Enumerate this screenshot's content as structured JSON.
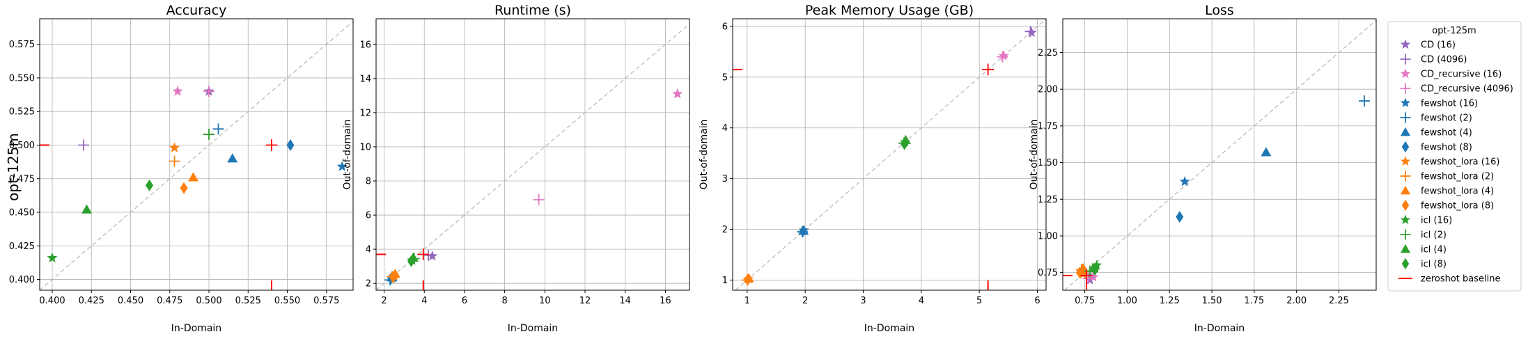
{
  "row_label": "opt-125m",
  "colors": {
    "CD": "#9467bd",
    "CD_recursive": "#e377c2",
    "fewshot": "#1f77b4",
    "fewshot_lora": "#ff7f0e",
    "icl": "#2ca02c",
    "zeroshot": "#ff0000",
    "diag": "#bbbbbb",
    "grid": "#b0b0b0"
  },
  "legend": {
    "title": "opt-125m",
    "placement": "outside-right",
    "entries": [
      {
        "label": "CD (16)",
        "family": "CD",
        "marker": "star"
      },
      {
        "label": "CD (4096)",
        "family": "CD",
        "marker": "plus"
      },
      {
        "label": "CD_recursive (16)",
        "family": "CD_recursive",
        "marker": "star"
      },
      {
        "label": "CD_recursive (4096)",
        "family": "CD_recursive",
        "marker": "plus"
      },
      {
        "label": "fewshot (16)",
        "family": "fewshot",
        "marker": "star"
      },
      {
        "label": "fewshot (2)",
        "family": "fewshot",
        "marker": "plus"
      },
      {
        "label": "fewshot (4)",
        "family": "fewshot",
        "marker": "triangle"
      },
      {
        "label": "fewshot (8)",
        "family": "fewshot",
        "marker": "diamond"
      },
      {
        "label": "fewshot_lora (16)",
        "family": "fewshot_lora",
        "marker": "star"
      },
      {
        "label": "fewshot_lora (2)",
        "family": "fewshot_lora",
        "marker": "plus"
      },
      {
        "label": "fewshot_lora (4)",
        "family": "fewshot_lora",
        "marker": "triangle"
      },
      {
        "label": "fewshot_lora (8)",
        "family": "fewshot_lora",
        "marker": "diamond"
      },
      {
        "label": "icl (16)",
        "family": "icl",
        "marker": "star"
      },
      {
        "label": "icl (2)",
        "family": "icl",
        "marker": "plus"
      },
      {
        "label": "icl (4)",
        "family": "icl",
        "marker": "triangle"
      },
      {
        "label": "icl (8)",
        "family": "icl",
        "marker": "diamond"
      },
      {
        "label": "zeroshot baseline",
        "family": "zeroshot",
        "marker": "line"
      }
    ]
  },
  "chart_data": [
    {
      "type": "scatter",
      "title": "Accuracy",
      "xlabel": "In-Domain",
      "ylabel": "",
      "xlim": [
        0.392,
        0.592
      ],
      "ylim": [
        0.392,
        0.594
      ],
      "xticks": [
        "0.400",
        "0.425",
        "0.450",
        "0.475",
        "0.500",
        "0.525",
        "0.550",
        "0.575"
      ],
      "xtick_values": [
        0.4,
        0.425,
        0.45,
        0.475,
        0.5,
        0.525,
        0.55,
        0.575
      ],
      "yticks": [
        "0.400",
        "0.425",
        "0.450",
        "0.475",
        "0.500",
        "0.525",
        "0.550",
        "0.575"
      ],
      "ytick_values": [
        0.4,
        0.425,
        0.45,
        0.475,
        0.5,
        0.525,
        0.55,
        0.575
      ],
      "grid": true,
      "zeroshot": {
        "x": 0.54,
        "y": 0.5
      },
      "points": [
        {
          "series": "CD (16)",
          "x": 0.5,
          "y": 0.54
        },
        {
          "series": "CD (4096)",
          "x": 0.42,
          "y": 0.5
        },
        {
          "series": "CD_recursive (16)",
          "x": 0.48,
          "y": 0.54
        },
        {
          "series": "CD_recursive (4096)",
          "x": 0.5,
          "y": 0.54
        },
        {
          "series": "fewshot (16)",
          "x": 0.585,
          "y": 0.484
        },
        {
          "series": "fewshot (2)",
          "x": 0.506,
          "y": 0.512
        },
        {
          "series": "fewshot (4)",
          "x": 0.515,
          "y": 0.49
        },
        {
          "series": "fewshot (8)",
          "x": 0.552,
          "y": 0.5
        },
        {
          "series": "fewshot_lora (16)",
          "x": 0.478,
          "y": 0.498
        },
        {
          "series": "fewshot_lora (2)",
          "x": 0.478,
          "y": 0.488
        },
        {
          "series": "fewshot_lora (4)",
          "x": 0.49,
          "y": 0.476
        },
        {
          "series": "fewshot_lora (8)",
          "x": 0.484,
          "y": 0.468
        },
        {
          "series": "icl (16)",
          "x": 0.4,
          "y": 0.416
        },
        {
          "series": "icl (2)",
          "x": 0.5,
          "y": 0.508
        },
        {
          "series": "icl (4)",
          "x": 0.422,
          "y": 0.452
        },
        {
          "series": "icl (8)",
          "x": 0.462,
          "y": 0.47
        }
      ]
    },
    {
      "type": "scatter",
      "title": "Runtime (s)",
      "xlabel": "In-Domain",
      "ylabel": "Out-of-domain",
      "xlim": [
        1.6,
        17.2
      ],
      "ylim": [
        1.6,
        17.5
      ],
      "xticks": [
        "2",
        "4",
        "6",
        "8",
        "10",
        "12",
        "14",
        "16"
      ],
      "xtick_values": [
        2,
        4,
        6,
        8,
        10,
        12,
        14,
        16
      ],
      "yticks": [
        "2",
        "4",
        "6",
        "8",
        "10",
        "12",
        "14",
        "16"
      ],
      "ytick_values": [
        2,
        4,
        6,
        8,
        10,
        12,
        14,
        16
      ],
      "grid": true,
      "zeroshot": {
        "x": 3.95,
        "y": 3.7
      },
      "points": [
        {
          "series": "CD (16)",
          "x": 4.4,
          "y": 3.6
        },
        {
          "series": "CD (4096)",
          "x": 4.2,
          "y": 3.65
        },
        {
          "series": "CD_recursive (16)",
          "x": 16.6,
          "y": 13.1
        },
        {
          "series": "CD_recursive (4096)",
          "x": 9.7,
          "y": 6.9
        },
        {
          "series": "fewshot (16)",
          "x": 2.4,
          "y": 2.3
        },
        {
          "series": "fewshot (2)",
          "x": 2.3,
          "y": 2.2
        },
        {
          "series": "fewshot (4)",
          "x": 2.4,
          "y": 2.35
        },
        {
          "series": "fewshot (8)",
          "x": 2.35,
          "y": 2.3
        },
        {
          "series": "fewshot_lora (16)",
          "x": 2.5,
          "y": 2.45
        },
        {
          "series": "fewshot_lora (2)",
          "x": 2.4,
          "y": 2.4
        },
        {
          "series": "fewshot_lora (4)",
          "x": 2.55,
          "y": 2.55
        },
        {
          "series": "fewshot_lora (8)",
          "x": 2.45,
          "y": 2.35
        },
        {
          "series": "icl (16)",
          "x": 3.4,
          "y": 3.35
        },
        {
          "series": "icl (2)",
          "x": 3.5,
          "y": 3.45
        },
        {
          "series": "icl (4)",
          "x": 3.45,
          "y": 3.5
        },
        {
          "series": "icl (8)",
          "x": 3.35,
          "y": 3.3
        }
      ]
    },
    {
      "type": "scatter",
      "title": "Peak Memory Usage (GB)",
      "xlabel": "In-Domain",
      "ylabel": "Out-of-domain",
      "xlim": [
        0.75,
        6.15
      ],
      "ylim": [
        0.8,
        6.15
      ],
      "xticks": [
        "1",
        "2",
        "3",
        "4",
        "5",
        "6"
      ],
      "xtick_values": [
        1,
        2,
        3,
        4,
        5,
        6
      ],
      "yticks": [
        "1",
        "2",
        "3",
        "4",
        "5",
        "6"
      ],
      "ytick_values": [
        1,
        2,
        3,
        4,
        5,
        6
      ],
      "grid": true,
      "zeroshot": {
        "x": 5.15,
        "y": 5.15
      },
      "points": [
        {
          "series": "CD (16)",
          "x": 5.9,
          "y": 5.88
        },
        {
          "series": "CD (4096)",
          "x": 5.88,
          "y": 5.9
        },
        {
          "series": "CD_recursive (16)",
          "x": 5.42,
          "y": 5.42
        },
        {
          "series": "CD_recursive (4096)",
          "x": 5.4,
          "y": 5.4
        },
        {
          "series": "fewshot (16)",
          "x": 1.98,
          "y": 1.98
        },
        {
          "series": "fewshot (2)",
          "x": 1.95,
          "y": 1.95
        },
        {
          "series": "fewshot (4)",
          "x": 1.97,
          "y": 1.97
        },
        {
          "series": "fewshot (8)",
          "x": 1.96,
          "y": 1.96
        },
        {
          "series": "fewshot_lora (16)",
          "x": 1.02,
          "y": 1.02
        },
        {
          "series": "fewshot_lora (2)",
          "x": 1.0,
          "y": 1.0
        },
        {
          "series": "fewshot_lora (4)",
          "x": 1.03,
          "y": 1.03
        },
        {
          "series": "fewshot_lora (8)",
          "x": 1.01,
          "y": 1.01
        },
        {
          "series": "icl (16)",
          "x": 3.72,
          "y": 3.72
        },
        {
          "series": "icl (2)",
          "x": 3.7,
          "y": 3.7
        },
        {
          "series": "icl (4)",
          "x": 3.73,
          "y": 3.76
        },
        {
          "series": "icl (8)",
          "x": 3.71,
          "y": 3.68
        }
      ]
    },
    {
      "type": "scatter",
      "title": "Loss",
      "xlabel": "In-Domain",
      "ylabel": "Out-of-domain",
      "xlim": [
        0.62,
        2.47
      ],
      "ylim": [
        0.63,
        2.48
      ],
      "xticks": [
        "0.75",
        "1.00",
        "1.25",
        "1.50",
        "1.75",
        "2.00",
        "2.25"
      ],
      "xtick_values": [
        0.75,
        1.0,
        1.25,
        1.5,
        1.75,
        2.0,
        2.25
      ],
      "yticks": [
        "0.75",
        "1.00",
        "1.25",
        "1.50",
        "1.75",
        "2.00",
        "2.25"
      ],
      "ytick_values": [
        0.75,
        1.0,
        1.25,
        1.5,
        1.75,
        2.0,
        2.25
      ],
      "grid": true,
      "zeroshot": {
        "x": 0.76,
        "y": 0.73
      },
      "points": [
        {
          "series": "CD (16)",
          "x": 0.78,
          "y": 0.7
        },
        {
          "series": "CD (4096)",
          "x": 0.76,
          "y": 0.74
        },
        {
          "series": "CD_recursive (16)",
          "x": 0.8,
          "y": 0.72
        },
        {
          "series": "CD_recursive (4096)",
          "x": 0.77,
          "y": 0.71
        },
        {
          "series": "fewshot (16)",
          "x": 1.34,
          "y": 1.37
        },
        {
          "series": "fewshot (2)",
          "x": 2.4,
          "y": 1.92
        },
        {
          "series": "fewshot (4)",
          "x": 1.82,
          "y": 1.57
        },
        {
          "series": "fewshot (8)",
          "x": 1.31,
          "y": 1.13
        },
        {
          "series": "fewshot_lora (16)",
          "x": 0.74,
          "y": 0.74
        },
        {
          "series": "fewshot_lora (2)",
          "x": 0.73,
          "y": 0.77
        },
        {
          "series": "fewshot_lora (4)",
          "x": 0.74,
          "y": 0.78
        },
        {
          "series": "fewshot_lora (8)",
          "x": 0.72,
          "y": 0.75
        },
        {
          "series": "icl (16)",
          "x": 0.82,
          "y": 0.8
        },
        {
          "series": "icl (2)",
          "x": 0.78,
          "y": 0.76
        },
        {
          "series": "icl (4)",
          "x": 0.8,
          "y": 0.78
        },
        {
          "series": "icl (8)",
          "x": 0.81,
          "y": 0.77
        }
      ]
    }
  ]
}
